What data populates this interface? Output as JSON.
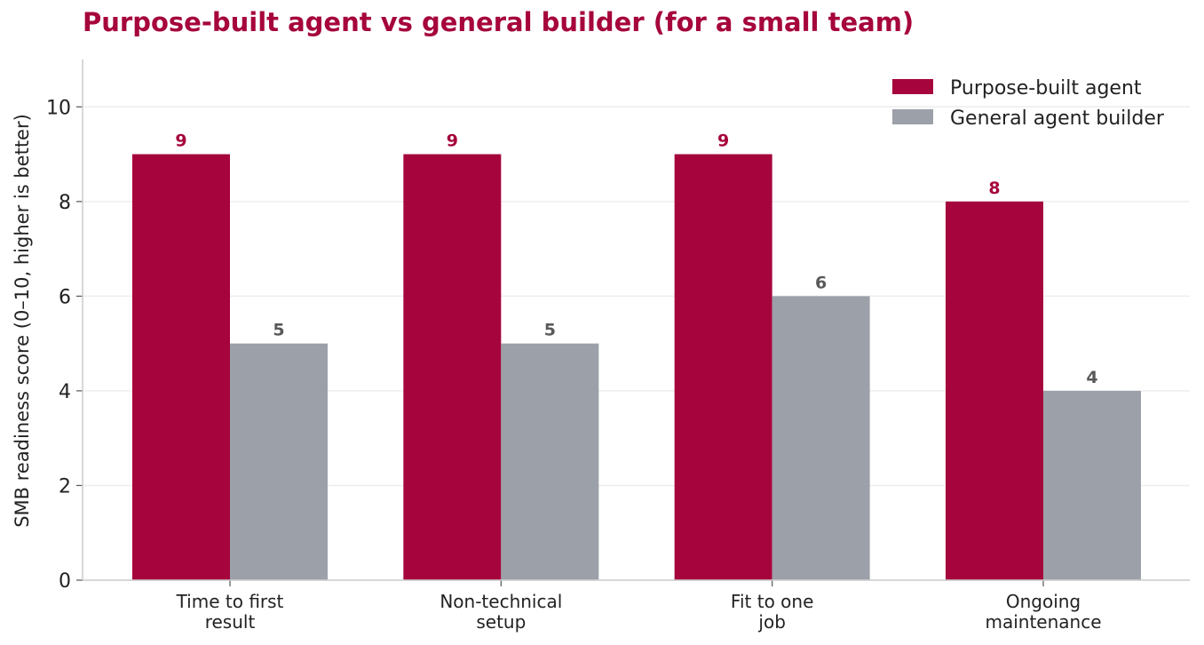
{
  "chart_data": {
    "type": "bar",
    "title": "Purpose-built agent vs general builder (for a small team)",
    "xlabel": "",
    "ylabel": "SMB readiness score (0–10, higher is better)",
    "categories": [
      [
        "Time to first",
        "result"
      ],
      [
        "Non-technical",
        "setup"
      ],
      [
        "Fit to one",
        "job"
      ],
      [
        "Ongoing",
        "maintenance"
      ]
    ],
    "series": [
      {
        "name": "Purpose-built agent",
        "values": [
          9,
          9,
          9,
          8
        ],
        "color": "#a6043c"
      },
      {
        "name": "General agent builder",
        "values": [
          5,
          5,
          6,
          4
        ],
        "color": "#9ca0a8"
      }
    ],
    "data_label_colors": [
      "#a6043c",
      "#595959"
    ],
    "ylim": [
      0,
      11
    ],
    "yticks": [
      0,
      2,
      4,
      6,
      8,
      10
    ],
    "grid": "horizontal",
    "legend_position": "top-right"
  }
}
